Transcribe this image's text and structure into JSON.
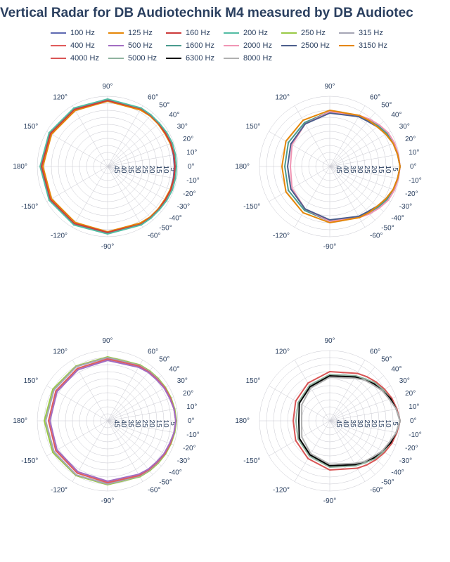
{
  "title": "Vertical Radar for DB Audiotechnik M4 measured by DB Audiotec",
  "title_color": "#2a3f5f",
  "title_fontsize": 19,
  "background_color": "#ffffff",
  "label_color": "#2a3f5f",
  "label_fontsize": 10,
  "legend_fontsize": 11,
  "grid_color": "#c8c8d0",
  "frequencies": [
    {
      "label": "100 Hz",
      "color": "#5d69b1"
    },
    {
      "label": "125 Hz",
      "color": "#e58606"
    },
    {
      "label": "160 Hz",
      "color": "#cc3a3a"
    },
    {
      "label": "200 Hz",
      "color": "#52bca3"
    },
    {
      "label": "250 Hz",
      "color": "#99c945"
    },
    {
      "label": "315 Hz",
      "color": "#a5a5b5"
    },
    {
      "label": "400 Hz",
      "color": "#e05b5b"
    },
    {
      "label": "500 Hz",
      "color": "#a26dc2"
    },
    {
      "label": "1600 Hz",
      "color": "#4a9b8e"
    },
    {
      "label": "2000 Hz",
      "color": "#f095b4"
    },
    {
      "label": "2500 Hz",
      "color": "#4c5e8c"
    },
    {
      "label": "3150 Hz",
      "color": "#e58606"
    },
    {
      "label": "4000 Hz",
      "color": "#d95555"
    },
    {
      "label": "5000 Hz",
      "color": "#8fb39f"
    },
    {
      "label": "6300 Hz",
      "color": "#000000"
    },
    {
      "label": "8000 Hz",
      "color": "#b0b0b0"
    }
  ],
  "polar": {
    "angles_deg": [
      -180,
      -150,
      -120,
      -90,
      -60,
      -50,
      -40,
      -30,
      -20,
      -10,
      0,
      10,
      20,
      30,
      40,
      50,
      60,
      90,
      120,
      150,
      180
    ],
    "radius_ticks": [
      -45,
      -40,
      -35,
      -30,
      -25,
      -20,
      -15,
      -10,
      -5
    ],
    "angle_labels": [
      "-180°",
      "-150°",
      "-120°",
      "-90°",
      "-60°",
      "-50°",
      "-40°",
      "-30°",
      "-20°",
      "-10°",
      "0°",
      "10°",
      "20°",
      "30°",
      "40°",
      "50°",
      "60°",
      "90°",
      "120°",
      "150°",
      "180°"
    ],
    "angle_label_show": [
      "180°",
      "-150°",
      "-120°",
      "-90°",
      "-60°",
      "-50°",
      "-40°",
      "-30°",
      "-20°",
      "-10°",
      "0°",
      "10°",
      "20°",
      "30°",
      "40°",
      "50°",
      "60°",
      "90°",
      "120°",
      "150°"
    ],
    "r_min": -50,
    "r_max": 0
  },
  "panels": [
    {
      "series": [
        {
          "freq": "100 Hz",
          "r": [
            -2.5,
            -2.5,
            -2.5,
            -2.5,
            -2.5,
            -2.5,
            -2.5,
            -2.5,
            -2.5,
            -2.5,
            -2.5,
            -2.5,
            -2.5,
            -2.5,
            -2.5,
            -2.5,
            -2.5,
            -2.5,
            -2.5,
            -2.5,
            -2.5
          ]
        },
        {
          "freq": "125 Hz",
          "r": [
            -4,
            -4,
            -4,
            -3.5,
            -3.5,
            -3,
            -3,
            -3,
            -2.5,
            -2,
            -2,
            -2,
            -2.5,
            -3,
            -3,
            -3,
            -3.5,
            -3.5,
            -4,
            -4,
            -4
          ]
        },
        {
          "freq": "160 Hz",
          "r": [
            -3,
            -3,
            -3,
            -3,
            -2.5,
            -2.5,
            -2.5,
            -2.5,
            -2,
            -2,
            -2,
            -2,
            -2,
            -2.5,
            -2.5,
            -2.5,
            -2.5,
            -3,
            -3,
            -3,
            -3
          ]
        },
        {
          "freq": "200 Hz",
          "r": [
            -2,
            -2,
            -2,
            -2,
            -2,
            -2,
            -2,
            -1.5,
            -1,
            -1,
            -1,
            -1,
            -1,
            -1.5,
            -2,
            -2,
            -2,
            -2,
            -2,
            -2,
            -2
          ]
        }
      ]
    },
    {
      "series": [
        {
          "freq": "1600 Hz",
          "r": [
            -18,
            -16,
            -14,
            -11,
            -8,
            -7,
            -5,
            -3,
            -2,
            -1,
            0,
            -1,
            -2,
            -3,
            -5,
            -7,
            -8,
            -11,
            -14,
            -16,
            -18
          ]
        },
        {
          "freq": "2000 Hz",
          "r": [
            -22,
            -19,
            -15,
            -11,
            -8,
            -6,
            -4,
            -2,
            -1,
            -0.5,
            0,
            -0.5,
            -1,
            -2,
            -4,
            -6,
            -8,
            -11,
            -15,
            -19,
            -22
          ]
        },
        {
          "freq": "2500 Hz",
          "r": [
            -20,
            -18,
            -15,
            -12,
            -9,
            -8,
            -6,
            -4,
            -2,
            -1,
            0,
            -1,
            -2,
            -4,
            -6,
            -8,
            -9,
            -12,
            -15,
            -18,
            -20
          ]
        },
        {
          "freq": "3150 Hz",
          "r": [
            -16,
            -14,
            -12,
            -10,
            -8,
            -7,
            -6,
            -4,
            -2,
            -1,
            0,
            -1,
            -2,
            -4,
            -6,
            -7,
            -8,
            -10,
            -12,
            -14,
            -16
          ]
        }
      ]
    },
    {
      "series": [
        {
          "freq": "250 Hz",
          "r": [
            -5,
            -5,
            -5,
            -4.5,
            -4,
            -3.5,
            -3,
            -2.5,
            -2,
            -1.5,
            -1,
            -1.5,
            -2,
            -2.5,
            -3,
            -3.5,
            -4,
            -4.5,
            -5,
            -5,
            -5
          ]
        },
        {
          "freq": "315 Hz",
          "r": [
            -6,
            -6,
            -5.5,
            -5,
            -4.5,
            -4,
            -3.5,
            -3,
            -2.5,
            -2,
            -1.5,
            -2,
            -2.5,
            -3,
            -3.5,
            -4,
            -4.5,
            -5,
            -5.5,
            -6,
            -6
          ]
        },
        {
          "freq": "400 Hz",
          "r": [
            -8,
            -7.5,
            -7,
            -6,
            -5,
            -4.5,
            -4,
            -3,
            -2.5,
            -2,
            -1.5,
            -2,
            -2.5,
            -3,
            -4,
            -4.5,
            -5,
            -6,
            -7,
            -7.5,
            -8
          ]
        },
        {
          "freq": "500 Hz",
          "r": [
            -9,
            -8.5,
            -8,
            -7,
            -6,
            -5,
            -4.5,
            -3.5,
            -3,
            -2,
            -1.5,
            -2,
            -3,
            -3.5,
            -4.5,
            -5,
            -6,
            -7,
            -8,
            -8.5,
            -9
          ]
        }
      ]
    },
    {
      "series": [
        {
          "freq": "4000 Hz",
          "r": [
            -24,
            -22,
            -19,
            -15,
            -11,
            -9,
            -7,
            -5,
            -3,
            -1.5,
            0,
            -1.5,
            -3,
            -5,
            -7,
            -9,
            -11,
            -15,
            -19,
            -22,
            -24
          ]
        },
        {
          "freq": "5000 Hz",
          "r": [
            -26,
            -24,
            -21,
            -17,
            -13,
            -11,
            -8,
            -6,
            -4,
            -2,
            0,
            -2,
            -4,
            -6,
            -8,
            -11,
            -13,
            -17,
            -21,
            -24,
            -26
          ]
        },
        {
          "freq": "6300 Hz",
          "r": [
            -28,
            -25,
            -22,
            -18,
            -14,
            -12,
            -9,
            -7,
            -4,
            -2,
            0,
            -2,
            -4,
            -7,
            -9,
            -12,
            -14,
            -18,
            -22,
            -25,
            -28
          ]
        },
        {
          "freq": "8000 Hz",
          "r": [
            -30,
            -27,
            -23,
            -19,
            -15,
            -12,
            -10,
            -7,
            -5,
            -2,
            0,
            -2,
            -5,
            -7,
            -10,
            -12,
            -15,
            -19,
            -23,
            -27,
            -30
          ]
        }
      ]
    }
  ]
}
